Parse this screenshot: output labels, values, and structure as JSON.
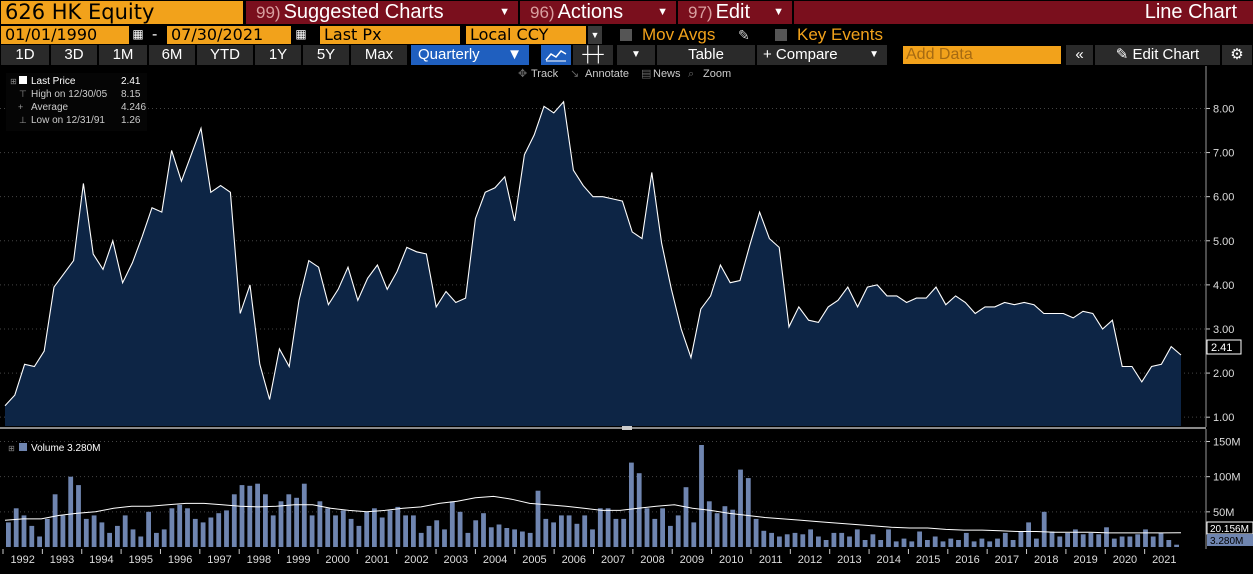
{
  "header": {
    "ticker": "626 HK Equity",
    "suggested": {
      "num": "99)",
      "label": "Suggested Charts"
    },
    "actions": {
      "num": "96)",
      "label": "Actions"
    },
    "edit": {
      "num": "97)",
      "label": "Edit"
    },
    "chart_type": "Line Chart"
  },
  "controls": {
    "start_date": "01/01/1990",
    "end_date": "07/30/2021",
    "field": "Last Px",
    "currency": "Local CCY",
    "mov_avgs": "Mov Avgs",
    "key_events": "Key Events"
  },
  "toolbar": {
    "periods": [
      "1D",
      "3D",
      "1M",
      "6M",
      "YTD",
      "1Y",
      "5Y",
      "Max"
    ],
    "frequency": "Quarterly",
    "table": "Table",
    "compare": "+ Compare",
    "add_data_placeholder": "Add Data",
    "edit_chart": "Edit Chart"
  },
  "tools": {
    "track": "Track",
    "annotate": "Annotate",
    "news": "News",
    "zoom": "Zoom"
  },
  "legend": {
    "rows": [
      {
        "label": "Last Price",
        "value": "2.41"
      },
      {
        "label": "High on 12/30/05",
        "value": "8.15"
      },
      {
        "label": "Average",
        "value": "4.246"
      },
      {
        "label": "Low on 12/31/91",
        "value": "1.26"
      }
    ],
    "volume": "Volume 3.280M"
  },
  "colors": {
    "accent": "#f2a21b",
    "header_red": "#7a0f1d",
    "area_fill": "#0d2545",
    "volume_bar": "#6f85b0",
    "selected": "#1f5fbf"
  },
  "chart_data": [
    {
      "type": "area",
      "series": [
        {
          "name": "Last Price",
          "values": [
            1.26,
            1.5,
            2.2,
            2.15,
            2.5,
            3.95,
            4.25,
            4.55,
            6.3,
            4.7,
            4.35,
            5.0,
            4.05,
            4.5,
            5.1,
            5.75,
            5.65,
            7.05,
            6.35,
            6.95,
            7.55,
            6.1,
            6.25,
            6.1,
            3.35,
            4.0,
            2.2,
            1.4,
            2.55,
            2.15,
            3.65,
            4.55,
            4.4,
            3.55,
            3.9,
            4.4,
            3.65,
            4.15,
            4.45,
            3.9,
            4.3,
            4.85,
            4.75,
            4.7,
            3.5,
            3.85,
            3.6,
            3.7,
            5.5,
            6.1,
            6.2,
            6.45,
            5.45,
            6.95,
            7.4,
            8.05,
            7.9,
            8.15,
            6.6,
            6.25,
            6.0,
            6.0,
            5.95,
            5.9,
            5.2,
            5.05,
            6.55,
            4.95,
            3.9,
            3.0,
            2.35,
            3.45,
            3.75,
            4.45,
            4.05,
            4.1,
            4.9,
            5.65,
            5.05,
            4.85,
            3.05,
            3.5,
            3.2,
            3.15,
            3.5,
            3.65,
            3.95,
            3.5,
            3.95,
            4.0,
            3.75,
            3.75,
            3.6,
            3.7,
            3.7,
            3.95,
            3.55,
            3.75,
            3.6,
            3.35,
            3.5,
            3.5,
            3.6,
            3.55,
            3.6,
            3.55,
            3.35,
            3.35,
            3.35,
            3.25,
            3.4,
            3.35,
            3.0,
            3.2,
            2.15,
            2.15,
            1.8,
            2.15,
            2.2,
            2.6,
            2.41
          ]
        }
      ],
      "x_labels": [
        "1992",
        "1993",
        "1994",
        "1995",
        "1996",
        "1997",
        "1998",
        "1999",
        "2000",
        "2001",
        "2002",
        "2003",
        "2004",
        "2005",
        "2006",
        "2007",
        "2008",
        "2009",
        "2010",
        "2011",
        "2012",
        "2013",
        "2014",
        "2015",
        "2016",
        "2017",
        "2018",
        "2019",
        "2020",
        "2021"
      ],
      "y_ticks": [
        "1.00",
        "2.00",
        "3.00",
        "4.00",
        "5.00",
        "6.00",
        "7.00",
        "8.00"
      ],
      "ylim": [
        0.8,
        8.6
      ],
      "last_label": "2.41"
    },
    {
      "type": "bar",
      "series": [
        {
          "name": "Volume",
          "values": [
            35,
            55,
            45,
            30,
            15,
            40,
            75,
            45,
            100,
            88,
            40,
            45,
            35,
            20,
            30,
            45,
            25,
            15,
            50,
            20,
            25,
            55,
            60,
            55,
            40,
            35,
            42,
            48,
            52,
            75,
            88,
            87,
            90,
            75,
            45,
            65,
            75,
            70,
            90,
            45,
            65,
            55,
            45,
            52,
            40,
            30,
            50,
            55,
            42,
            52,
            57,
            45,
            45,
            20,
            30,
            38,
            25,
            65,
            50,
            20,
            38,
            48,
            28,
            32,
            27,
            25,
            22,
            20,
            80,
            40,
            35,
            45,
            45,
            33,
            45,
            25,
            55,
            55,
            40,
            40,
            120,
            105,
            55,
            40,
            55,
            30,
            45,
            85,
            35,
            145,
            65,
            48,
            58,
            53,
            110,
            98,
            40,
            23,
            20,
            15,
            18,
            20,
            18,
            25,
            15,
            10,
            20,
            20,
            15,
            25,
            10,
            18,
            10,
            25,
            8,
            12,
            8,
            22,
            10,
            15,
            8,
            12,
            10,
            20,
            8,
            12,
            8,
            12,
            20,
            10,
            22,
            35,
            12,
            50,
            22,
            15,
            20,
            25,
            18,
            20,
            18,
            28,
            12,
            15,
            15,
            18,
            25,
            15,
            20,
            10,
            3.28
          ]
        },
        {
          "name": "MA",
          "values": [
            38,
            40,
            40,
            45,
            48,
            50,
            55,
            58,
            58,
            60,
            62,
            62,
            60,
            58,
            57,
            58,
            60,
            60,
            55,
            52,
            50,
            52,
            55,
            57,
            62,
            65,
            70,
            72,
            68,
            62,
            60,
            58,
            55,
            52,
            52,
            55,
            58,
            60,
            55,
            52,
            48,
            45,
            42,
            40,
            38,
            36,
            34,
            32,
            30,
            28,
            27,
            27,
            25,
            24,
            24,
            23,
            22,
            22,
            21,
            21,
            21,
            20,
            20,
            20,
            20,
            20.156
          ]
        }
      ],
      "y_ticks": [
        "50M",
        "100M",
        "150M"
      ],
      "ylim": [
        0,
        155
      ],
      "last_labels": [
        "20.156M",
        "3.280M"
      ]
    }
  ]
}
